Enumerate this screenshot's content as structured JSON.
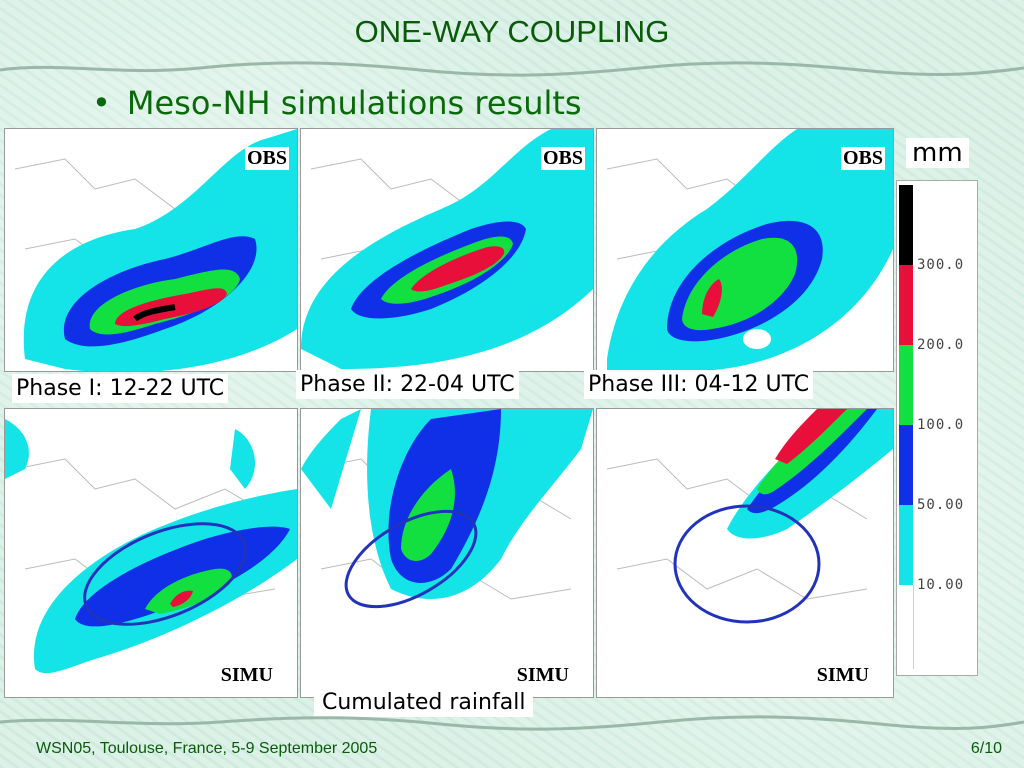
{
  "title": "ONE-WAY COUPLING",
  "bullet": "Meso-NH simulations results",
  "panels": {
    "obs_label": "OBS",
    "simu_label": "SIMU"
  },
  "phases": [
    "Phase I: 12-22 UTC",
    "Phase II: 22-04 UTC",
    "Phase III: 04-12 UTC"
  ],
  "scale": {
    "unit": "mm",
    "ticks": [
      "300.0",
      "200.0",
      "100.0",
      "50.00",
      "10.00"
    ],
    "colors": [
      "#000000",
      "#e8103a",
      "#12e040",
      "#1030e8",
      "#14e4e8",
      "#ffffff"
    ]
  },
  "caption": "Cumulated rainfall",
  "footer": {
    "left": "WSN05, Toulouse, France, 5-9 September 2005",
    "right": "6/10"
  }
}
